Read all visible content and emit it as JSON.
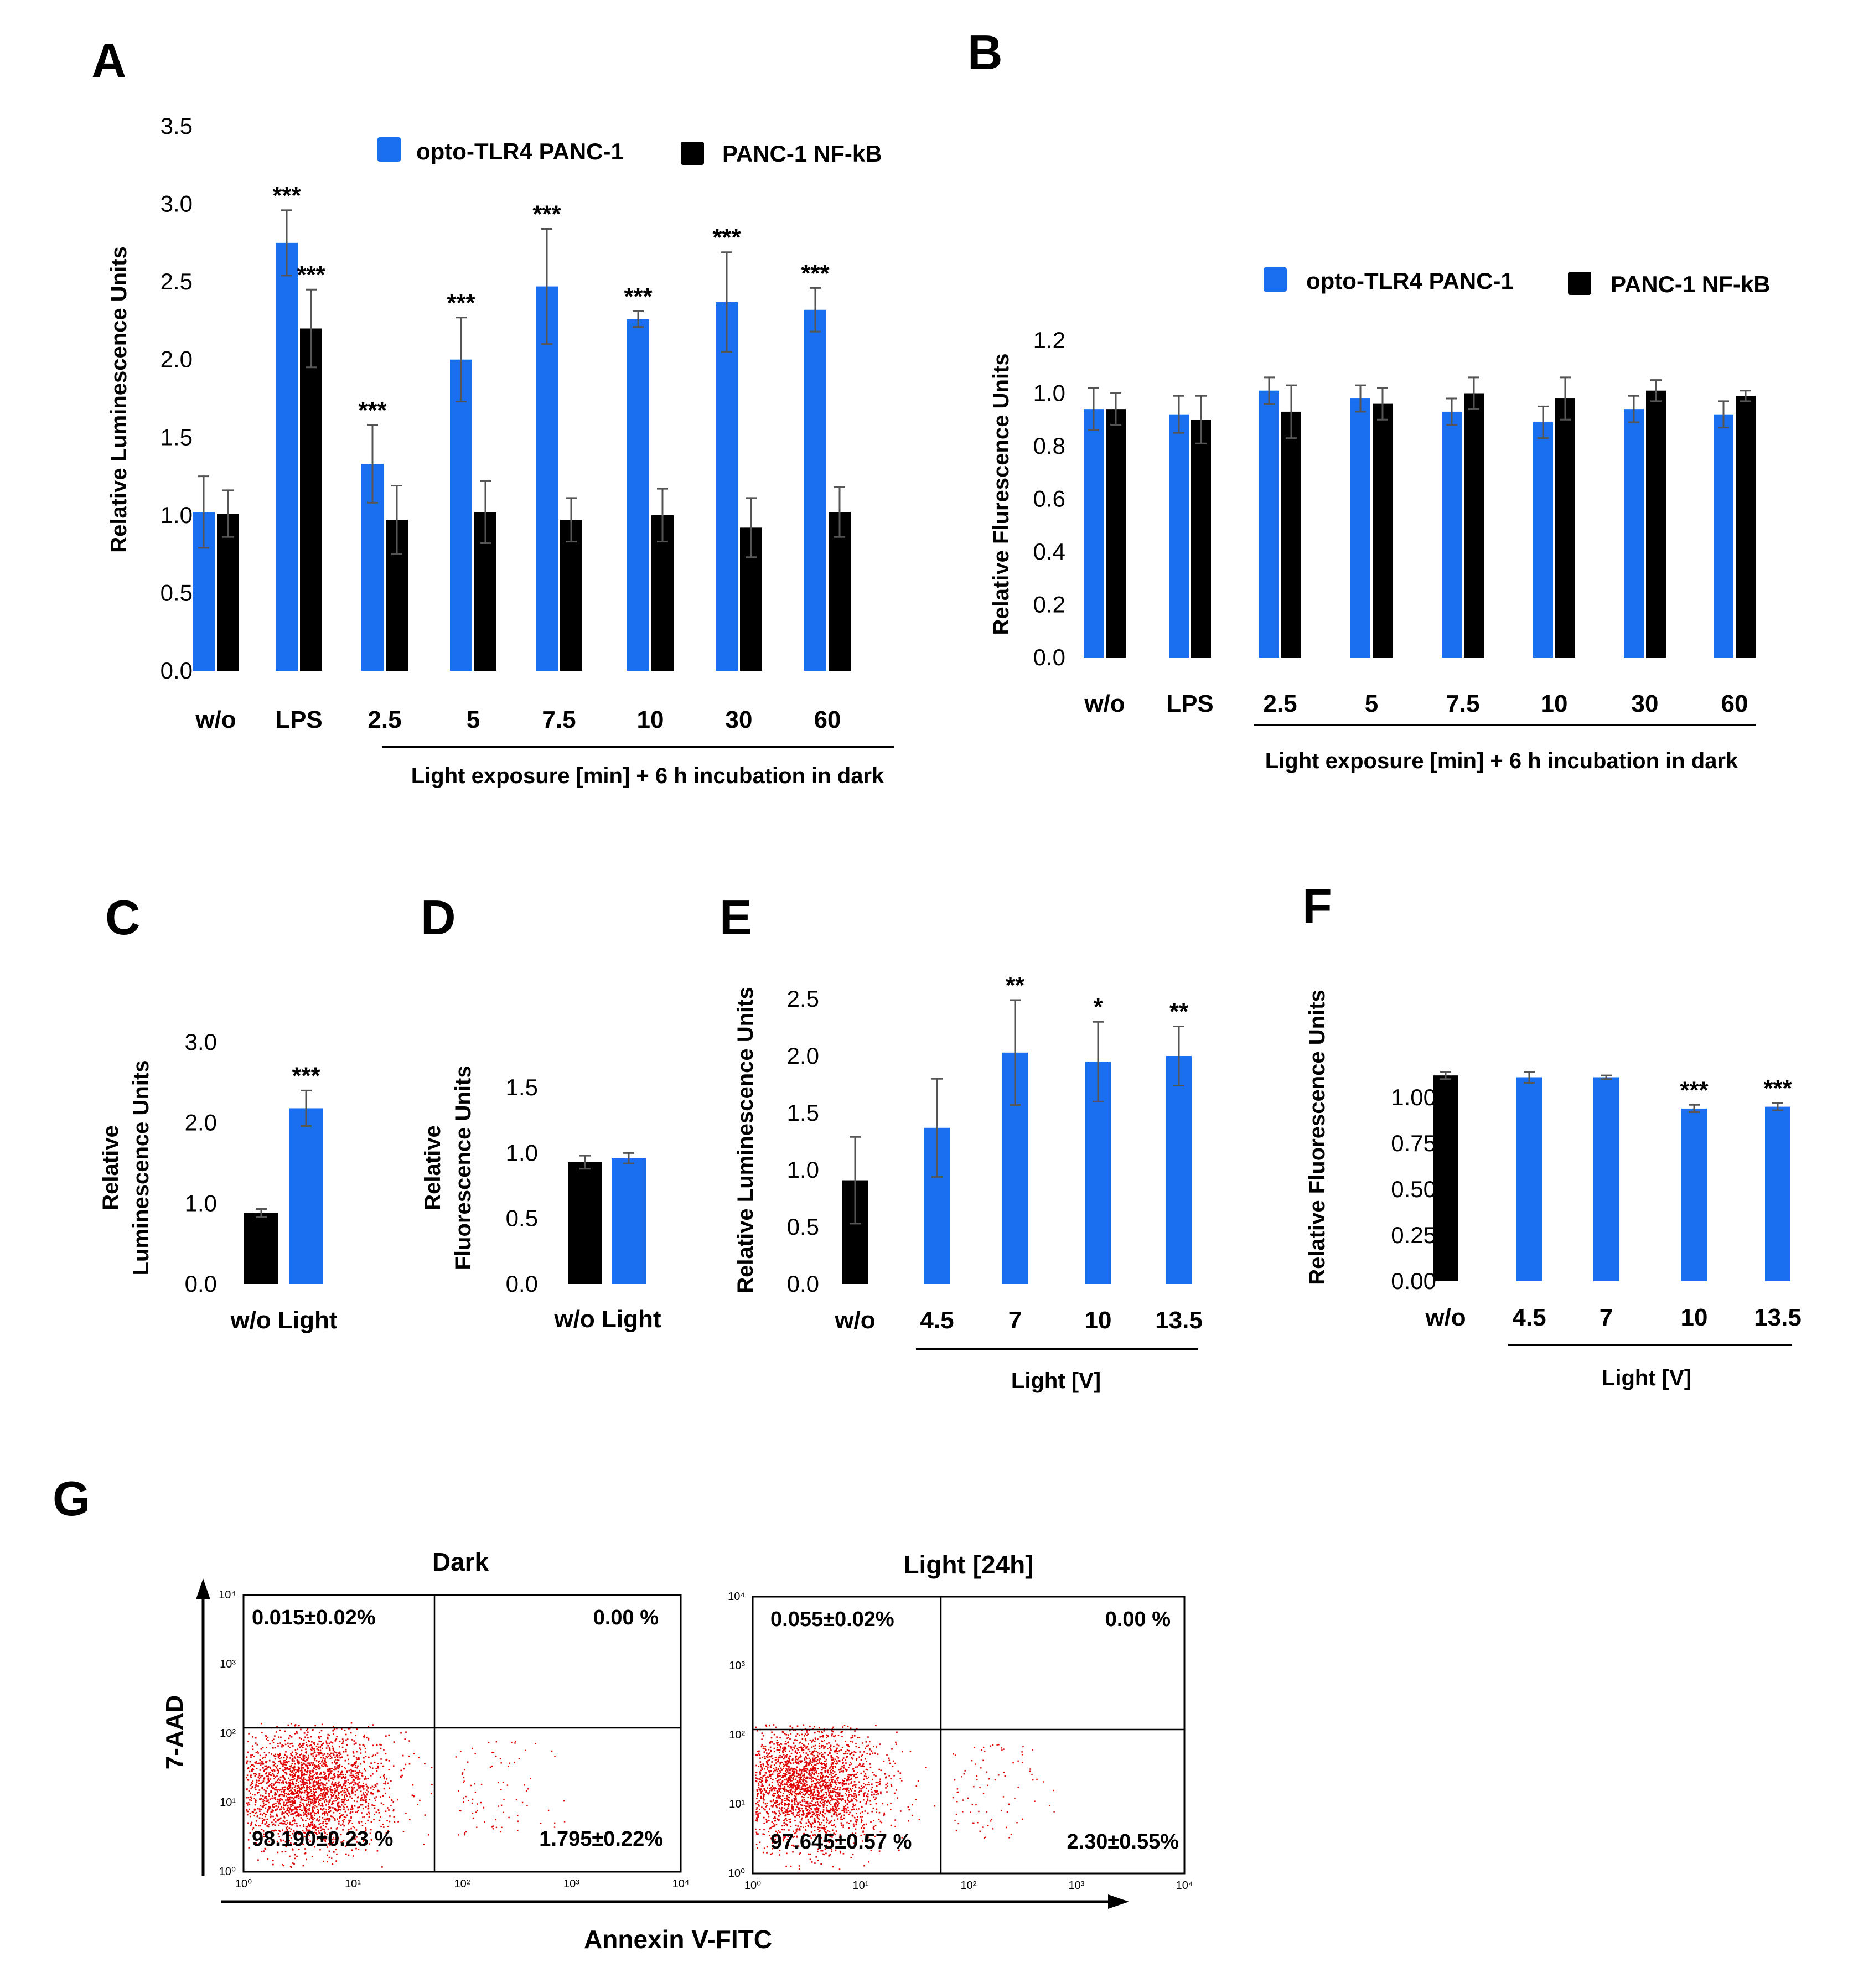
{
  "colors": {
    "blue": "#1a6ff0",
    "black": "#000000",
    "flow": "#e00000",
    "axis": "#000000",
    "err": "#555555"
  },
  "panels": {
    "A": {
      "label": "A",
      "ylabel": "Relative Luminescence Units",
      "xgroup_label": "Light exposure [min] + 6 h incubation in dark",
      "legend": [
        "opto-TLR4 PANC-1",
        "PANC-1 NF-kB"
      ]
    },
    "B": {
      "label": "B",
      "ylabel": "Relative Flurescence Units",
      "xgroup_label": "Light exposure [min] + 6 h incubation in dark",
      "legend": [
        "opto-TLR4 PANC-1",
        "PANC-1 NF-kB"
      ]
    },
    "C": {
      "label": "C",
      "ylabel_lines": [
        "Relative",
        "Luminescence Units"
      ]
    },
    "D": {
      "label": "D",
      "ylabel_lines": [
        "Relative",
        "Fluorescence Units"
      ]
    },
    "E": {
      "label": "E",
      "ylabel": "Relative Luminescence Units",
      "xgroup_label": "Light [V]"
    },
    "F": {
      "label": "F",
      "ylabel": "Relative Fluorescence Units",
      "xgroup_label": "Light [V]"
    },
    "G": {
      "label": "G",
      "ylabel": "7-AAD",
      "xlabel": "Annexin V-FITC",
      "plots": [
        {
          "title": "Dark",
          "q_ul": "0.015±0.02%",
          "q_ur": "0.00 %",
          "q_ll": "98.190±0.23 %",
          "q_lr": "1.795±0.22%"
        },
        {
          "title": "Light [24h]",
          "q_ul": "0.055±0.02%",
          "q_ur": "0.00 %",
          "q_ll": "97.645±0.57 %",
          "q_lr": "2.30±0.55%"
        }
      ],
      "log_ticks": [
        "10⁰",
        "10¹",
        "10²",
        "10³",
        "10⁴"
      ]
    }
  },
  "chart_data": [
    {
      "panel": "A",
      "type": "bar",
      "categories": [
        "w/o",
        "LPS",
        "2.5",
        "5",
        "7.5",
        "10",
        "30",
        "60"
      ],
      "ylim": [
        0,
        3.5
      ],
      "yticks": [
        "0.0",
        "0.5",
        "1.0",
        "1.5",
        "2.0",
        "2.5",
        "3.0",
        "3.5"
      ],
      "series": [
        {
          "name": "opto-TLR4 PANC-1",
          "color": "blue",
          "values": [
            1.02,
            2.75,
            1.33,
            2.0,
            2.47,
            2.26,
            2.37,
            2.32
          ],
          "errors": [
            0.23,
            0.21,
            0.25,
            0.27,
            0.37,
            0.05,
            0.32,
            0.14
          ]
        },
        {
          "name": "PANC-1 NF-kB",
          "color": "black",
          "values": [
            1.01,
            2.2,
            0.97,
            1.02,
            0.97,
            1.0,
            0.92,
            1.02
          ],
          "errors": [
            0.15,
            0.25,
            0.22,
            0.2,
            0.14,
            0.17,
            0.19,
            0.16
          ]
        }
      ],
      "annotations": [
        {
          "category": "LPS",
          "series": 0,
          "text": "***"
        },
        {
          "category": "LPS",
          "series": 1,
          "text": "***"
        },
        {
          "category": "2.5",
          "series": 0,
          "text": "***"
        },
        {
          "category": "5",
          "series": 0,
          "text": "***"
        },
        {
          "category": "7.5",
          "series": 0,
          "text": "***"
        },
        {
          "category": "10",
          "series": 0,
          "text": "***"
        },
        {
          "category": "30",
          "series": 0,
          "text": "***"
        },
        {
          "category": "60",
          "series": 0,
          "text": "***"
        }
      ]
    },
    {
      "panel": "B",
      "type": "bar",
      "categories": [
        "w/o",
        "LPS",
        "2.5",
        "5",
        "7.5",
        "10",
        "30",
        "60"
      ],
      "ylim": [
        0,
        1.2
      ],
      "yticks": [
        "0.0",
        "0.2",
        "0.4",
        "0.6",
        "0.8",
        "1.0",
        "1.2"
      ],
      "series": [
        {
          "name": "opto-TLR4 PANC-1",
          "color": "blue",
          "values": [
            0.94,
            0.92,
            1.01,
            0.98,
            0.93,
            0.89,
            0.94,
            0.92
          ],
          "errors": [
            0.08,
            0.07,
            0.05,
            0.05,
            0.05,
            0.06,
            0.05,
            0.05
          ]
        },
        {
          "name": "PANC-1 NF-kB",
          "color": "black",
          "values": [
            0.94,
            0.9,
            0.93,
            0.96,
            1.0,
            0.98,
            1.01,
            0.99
          ],
          "errors": [
            0.06,
            0.09,
            0.1,
            0.06,
            0.06,
            0.08,
            0.04,
            0.02
          ]
        }
      ],
      "annotations": []
    },
    {
      "panel": "C",
      "type": "bar",
      "categories": [
        "w/o",
        "Light"
      ],
      "ylim": [
        0,
        3.0
      ],
      "yticks": [
        "0.0",
        "1.0",
        "2.0",
        "3.0"
      ],
      "bars": [
        {
          "color": "black",
          "value": 0.88,
          "error": 0.05
        },
        {
          "color": "blue",
          "value": 2.18,
          "error": 0.22
        }
      ],
      "annotations": [
        {
          "index": 1,
          "text": "***"
        }
      ]
    },
    {
      "panel": "D",
      "type": "bar",
      "categories": [
        "w/o",
        "Light"
      ],
      "ylim": [
        0,
        1.5
      ],
      "yticks": [
        "0.0",
        "0.5",
        "1.0",
        "1.5"
      ],
      "bars": [
        {
          "color": "black",
          "value": 0.93,
          "error": 0.05
        },
        {
          "color": "blue",
          "value": 0.96,
          "error": 0.04
        }
      ],
      "annotations": []
    },
    {
      "panel": "E",
      "type": "bar",
      "categories": [
        "w/o",
        "4.5",
        "7",
        "10",
        "13.5"
      ],
      "ylim": [
        0,
        2.5
      ],
      "yticks": [
        "0.0",
        "0.5",
        "1.0",
        "1.5",
        "2.0",
        "2.5"
      ],
      "bars": [
        {
          "color": "black",
          "value": 0.91,
          "error": 0.38
        },
        {
          "color": "blue",
          "value": 1.37,
          "error": 0.43
        },
        {
          "color": "blue",
          "value": 2.03,
          "error": 0.46
        },
        {
          "color": "blue",
          "value": 1.95,
          "error": 0.35
        },
        {
          "color": "blue",
          "value": 2.0,
          "error": 0.26
        }
      ],
      "annotations": [
        {
          "index": 2,
          "text": "**"
        },
        {
          "index": 3,
          "text": "*"
        },
        {
          "index": 4,
          "text": "**"
        }
      ]
    },
    {
      "panel": "F",
      "type": "bar",
      "categories": [
        "w/o",
        "4.5",
        "7",
        "10",
        "13.5"
      ],
      "ylim": [
        0,
        1.25
      ],
      "yticks": [
        "0.00",
        "0.25",
        "0.50",
        "0.75",
        "1.00"
      ],
      "ytick_values": [
        0,
        0.25,
        0.5,
        0.75,
        1.0
      ],
      "bars": [
        {
          "color": "black",
          "value": 1.12,
          "error": 0.02
        },
        {
          "color": "blue",
          "value": 1.11,
          "error": 0.03
        },
        {
          "color": "blue",
          "value": 1.11,
          "error": 0.01
        },
        {
          "color": "blue",
          "value": 0.94,
          "error": 0.02
        },
        {
          "color": "blue",
          "value": 0.95,
          "error": 0.02
        }
      ],
      "annotations": [
        {
          "index": 3,
          "text": "***"
        },
        {
          "index": 4,
          "text": "***"
        }
      ]
    }
  ]
}
